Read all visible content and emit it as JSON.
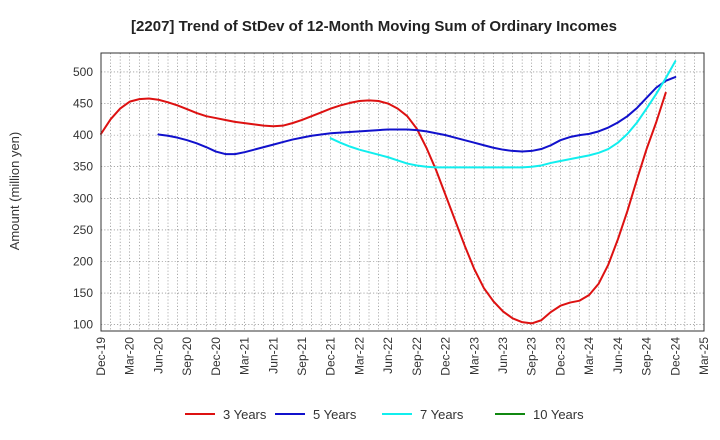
{
  "chart_data": {
    "type": "line",
    "title": "[2207]  Trend of StDev of 12-Month Moving Sum of Ordinary Incomes",
    "xlabel": "",
    "ylabel": "Amount (million yen)",
    "ylim": [
      90,
      530
    ],
    "yticks": [
      100,
      150,
      200,
      250,
      300,
      350,
      400,
      450,
      500
    ],
    "xticks": [
      "Dec-19",
      "Mar-20",
      "Jun-20",
      "Sep-20",
      "Dec-20",
      "Mar-21",
      "Jun-21",
      "Sep-21",
      "Dec-21",
      "Mar-22",
      "Jun-22",
      "Sep-22",
      "Dec-22",
      "Mar-23",
      "Jun-23",
      "Sep-23",
      "Dec-23",
      "Mar-24",
      "Jun-24",
      "Sep-24",
      "Dec-24",
      "Mar-25"
    ],
    "grid": true,
    "legend_position": "bottom",
    "series": [
      {
        "name": "3 Years",
        "color": "#dd1111",
        "points": [
          [
            0,
            402
          ],
          [
            1,
            425
          ],
          [
            2,
            442
          ],
          [
            3,
            453
          ],
          [
            4,
            457
          ],
          [
            5,
            458
          ],
          [
            6,
            456
          ],
          [
            7,
            452
          ],
          [
            8,
            447
          ],
          [
            9,
            441
          ],
          [
            10,
            435
          ],
          [
            11,
            430
          ],
          [
            12,
            427
          ],
          [
            13,
            424
          ],
          [
            14,
            421
          ],
          [
            15,
            419
          ],
          [
            16,
            417
          ],
          [
            17,
            415
          ],
          [
            18,
            414
          ],
          [
            19,
            415
          ],
          [
            20,
            419
          ],
          [
            21,
            424
          ],
          [
            22,
            430
          ],
          [
            23,
            436
          ],
          [
            24,
            442
          ],
          [
            25,
            447
          ],
          [
            26,
            451
          ],
          [
            27,
            454
          ],
          [
            28,
            455
          ],
          [
            29,
            454
          ],
          [
            30,
            450
          ],
          [
            31,
            442
          ],
          [
            32,
            430
          ],
          [
            33,
            410
          ],
          [
            34,
            380
          ],
          [
            35,
            345
          ],
          [
            36,
            305
          ],
          [
            37,
            265
          ],
          [
            38,
            225
          ],
          [
            39,
            188
          ],
          [
            40,
            158
          ],
          [
            41,
            137
          ],
          [
            42,
            121
          ],
          [
            43,
            110
          ],
          [
            44,
            104
          ],
          [
            45,
            102
          ],
          [
            46,
            107
          ],
          [
            47,
            120
          ],
          [
            48,
            130
          ],
          [
            49,
            135
          ],
          [
            50,
            138
          ],
          [
            51,
            147
          ],
          [
            52,
            165
          ],
          [
            53,
            195
          ],
          [
            54,
            235
          ],
          [
            55,
            280
          ],
          [
            56,
            330
          ],
          [
            57,
            378
          ],
          [
            58,
            420
          ],
          [
            59,
            467
          ]
        ]
      },
      {
        "name": "5 Years",
        "color": "#1111cc",
        "points": [
          [
            6,
            401
          ],
          [
            7,
            399
          ],
          [
            8,
            396
          ],
          [
            9,
            392
          ],
          [
            10,
            387
          ],
          [
            11,
            381
          ],
          [
            12,
            374
          ],
          [
            13,
            370
          ],
          [
            14,
            370
          ],
          [
            15,
            373
          ],
          [
            16,
            377
          ],
          [
            17,
            381
          ],
          [
            18,
            385
          ],
          [
            19,
            389
          ],
          [
            20,
            393
          ],
          [
            21,
            396
          ],
          [
            22,
            399
          ],
          [
            23,
            401
          ],
          [
            24,
            403
          ],
          [
            25,
            404
          ],
          [
            26,
            405
          ],
          [
            27,
            406
          ],
          [
            28,
            407
          ],
          [
            29,
            408
          ],
          [
            30,
            409
          ],
          [
            31,
            409
          ],
          [
            32,
            409
          ],
          [
            33,
            408
          ],
          [
            34,
            406
          ],
          [
            35,
            403
          ],
          [
            36,
            400
          ],
          [
            37,
            396
          ],
          [
            38,
            392
          ],
          [
            39,
            388
          ],
          [
            40,
            384
          ],
          [
            41,
            380
          ],
          [
            42,
            377
          ],
          [
            43,
            375
          ],
          [
            44,
            374
          ],
          [
            45,
            375
          ],
          [
            46,
            378
          ],
          [
            47,
            384
          ],
          [
            48,
            392
          ],
          [
            49,
            397
          ],
          [
            50,
            400
          ],
          [
            51,
            402
          ],
          [
            52,
            406
          ],
          [
            53,
            412
          ],
          [
            54,
            420
          ],
          [
            55,
            430
          ],
          [
            56,
            443
          ],
          [
            57,
            459
          ],
          [
            58,
            475
          ],
          [
            59,
            486
          ],
          [
            60,
            492
          ]
        ]
      },
      {
        "name": "7 Years",
        "color": "#11eeee",
        "points": [
          [
            24,
            395
          ],
          [
            25,
            388
          ],
          [
            26,
            382
          ],
          [
            27,
            377
          ],
          [
            28,
            373
          ],
          [
            29,
            369
          ],
          [
            30,
            365
          ],
          [
            31,
            360
          ],
          [
            32,
            355
          ],
          [
            33,
            352
          ],
          [
            34,
            350
          ],
          [
            35,
            349
          ],
          [
            36,
            349
          ],
          [
            37,
            349
          ],
          [
            38,
            349
          ],
          [
            39,
            349
          ],
          [
            40,
            349
          ],
          [
            41,
            349
          ],
          [
            42,
            349
          ],
          [
            43,
            349
          ],
          [
            44,
            349
          ],
          [
            45,
            350
          ],
          [
            46,
            352
          ],
          [
            47,
            356
          ],
          [
            48,
            359
          ],
          [
            49,
            362
          ],
          [
            50,
            365
          ],
          [
            51,
            368
          ],
          [
            52,
            372
          ],
          [
            53,
            378
          ],
          [
            54,
            388
          ],
          [
            55,
            402
          ],
          [
            56,
            420
          ],
          [
            57,
            442
          ],
          [
            58,
            465
          ],
          [
            59,
            490
          ],
          [
            60,
            517
          ]
        ]
      },
      {
        "name": "10 Years",
        "color": "#118811",
        "points": []
      }
    ]
  }
}
